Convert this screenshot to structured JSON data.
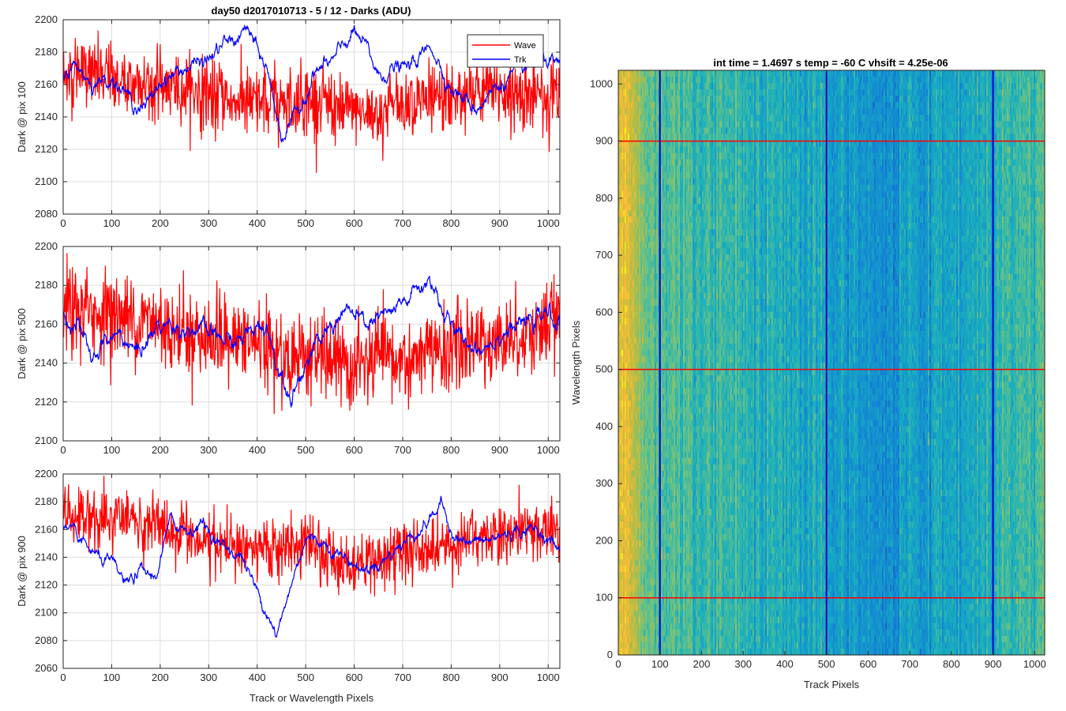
{
  "figure_title": "day50 d2017010713 - 5 / 12 - Darks (ADU)",
  "colors": {
    "wave": "#ff0000",
    "trk": "#0000ff",
    "grid": "#dcdcdc",
    "axis": "#262626"
  },
  "chart_data": [
    {
      "type": "line",
      "title": "day50 d2017010713 - 5 / 12 - Darks (ADU)",
      "ylabel": "Dark @ pix 100",
      "xlabel": "",
      "xlim": [
        0,
        1024
      ],
      "ylim": [
        2080,
        2200
      ],
      "xticks": [
        0,
        100,
        200,
        300,
        400,
        500,
        600,
        700,
        800,
        900,
        1000
      ],
      "yticks": [
        2080,
        2100,
        2120,
        2140,
        2160,
        2180,
        2200
      ],
      "grid": true,
      "legend": {
        "placement": "top-right",
        "entries": [
          "Wave",
          "Trk"
        ]
      },
      "series": [
        {
          "name": "Wave",
          "color": "#ff0000",
          "noise": 11,
          "anchors": [
            [
              0,
              2165
            ],
            [
              50,
              2168
            ],
            [
              100,
              2163
            ],
            [
              200,
              2160
            ],
            [
              300,
              2154
            ],
            [
              350,
              2150
            ],
            [
              400,
              2147
            ],
            [
              500,
              2151
            ],
            [
              550,
              2148
            ],
            [
              600,
              2142
            ],
            [
              650,
              2143
            ],
            [
              700,
              2150
            ],
            [
              800,
              2152
            ],
            [
              900,
              2155
            ],
            [
              1000,
              2153
            ],
            [
              1024,
              2152
            ]
          ]
        },
        {
          "name": "Trk",
          "color": "#0000ff",
          "noise": 4,
          "anchors": [
            [
              0,
              2168
            ],
            [
              30,
              2172
            ],
            [
              60,
              2160
            ],
            [
              100,
              2165
            ],
            [
              140,
              2150
            ],
            [
              170,
              2145
            ],
            [
              200,
              2162
            ],
            [
              250,
              2170
            ],
            [
              300,
              2175
            ],
            [
              330,
              2185
            ],
            [
              360,
              2188
            ],
            [
              380,
              2195
            ],
            [
              400,
              2180
            ],
            [
              420,
              2170
            ],
            [
              450,
              2128
            ],
            [
              480,
              2140
            ],
            [
              520,
              2168
            ],
            [
              560,
              2175
            ],
            [
              580,
              2185
            ],
            [
              600,
              2192
            ],
            [
              630,
              2180
            ],
            [
              650,
              2165
            ],
            [
              680,
              2170
            ],
            [
              710,
              2170
            ],
            [
              740,
              2178
            ],
            [
              760,
              2184
            ],
            [
              780,
              2170
            ],
            [
              800,
              2158
            ],
            [
              830,
              2150
            ],
            [
              850,
              2145
            ],
            [
              880,
              2155
            ],
            [
              920,
              2165
            ],
            [
              960,
              2170
            ],
            [
              1000,
              2175
            ],
            [
              1024,
              2168
            ]
          ]
        }
      ]
    },
    {
      "type": "line",
      "title": "",
      "ylabel": "Dark @ pix 500",
      "xlabel": "",
      "xlim": [
        0,
        1024
      ],
      "ylim": [
        2100,
        2200
      ],
      "xticks": [
        0,
        100,
        200,
        300,
        400,
        500,
        600,
        700,
        800,
        900,
        1000
      ],
      "yticks": [
        2100,
        2120,
        2140,
        2160,
        2180,
        2200
      ],
      "grid": true,
      "series": [
        {
          "name": "Wave",
          "color": "#ff0000",
          "noise": 11,
          "anchors": [
            [
              0,
              2168
            ],
            [
              100,
              2165
            ],
            [
              200,
              2160
            ],
            [
              300,
              2153
            ],
            [
              400,
              2150
            ],
            [
              450,
              2142
            ],
            [
              500,
              2146
            ],
            [
              550,
              2140
            ],
            [
              600,
              2138
            ],
            [
              650,
              2142
            ],
            [
              700,
              2140
            ],
            [
              800,
              2148
            ],
            [
              900,
              2152
            ],
            [
              1000,
              2158
            ],
            [
              1024,
              2160
            ]
          ]
        },
        {
          "name": "Trk",
          "color": "#0000ff",
          "noise": 4,
          "anchors": [
            [
              0,
              2165
            ],
            [
              30,
              2160
            ],
            [
              60,
              2140
            ],
            [
              80,
              2150
            ],
            [
              120,
              2155
            ],
            [
              150,
              2145
            ],
            [
              200,
              2160
            ],
            [
              260,
              2158
            ],
            [
              300,
              2155
            ],
            [
              350,
              2150
            ],
            [
              400,
              2158
            ],
            [
              420,
              2160
            ],
            [
              440,
              2140
            ],
            [
              470,
              2125
            ],
            [
              500,
              2140
            ],
            [
              540,
              2155
            ],
            [
              580,
              2168
            ],
            [
              620,
              2160
            ],
            [
              680,
              2165
            ],
            [
              720,
              2175
            ],
            [
              760,
              2183
            ],
            [
              790,
              2162
            ],
            [
              820,
              2152
            ],
            [
              860,
              2148
            ],
            [
              900,
              2155
            ],
            [
              950,
              2160
            ],
            [
              1000,
              2165
            ],
            [
              1024,
              2160
            ]
          ]
        }
      ]
    },
    {
      "type": "line",
      "title": "",
      "ylabel": "Dark @ pix 900",
      "xlabel": "Track or Wavelength Pixels",
      "xlim": [
        0,
        1024
      ],
      "ylim": [
        2060,
        2200
      ],
      "xticks": [
        0,
        100,
        200,
        300,
        400,
        500,
        600,
        700,
        800,
        900,
        1000
      ],
      "yticks": [
        2060,
        2080,
        2100,
        2120,
        2140,
        2160,
        2180,
        2200
      ],
      "grid": true,
      "series": [
        {
          "name": "Wave",
          "color": "#ff0000",
          "noise": 11,
          "anchors": [
            [
              0,
              2170
            ],
            [
              100,
              2168
            ],
            [
              200,
              2162
            ],
            [
              300,
              2150
            ],
            [
              400,
              2145
            ],
            [
              500,
              2148
            ],
            [
              550,
              2140
            ],
            [
              600,
              2135
            ],
            [
              650,
              2138
            ],
            [
              700,
              2145
            ],
            [
              800,
              2150
            ],
            [
              900,
              2158
            ],
            [
              1000,
              2160
            ],
            [
              1024,
              2162
            ]
          ]
        },
        {
          "name": "Trk",
          "color": "#0000ff",
          "noise": 4,
          "anchors": [
            [
              0,
              2160
            ],
            [
              40,
              2150
            ],
            [
              70,
              2140
            ],
            [
              100,
              2135
            ],
            [
              130,
              2120
            ],
            [
              160,
              2130
            ],
            [
              190,
              2125
            ],
            [
              220,
              2165
            ],
            [
              260,
              2160
            ],
            [
              290,
              2165
            ],
            [
              320,
              2150
            ],
            [
              370,
              2140
            ],
            [
              400,
              2115
            ],
            [
              430,
              2095
            ],
            [
              440,
              2082
            ],
            [
              470,
              2120
            ],
            [
              500,
              2155
            ],
            [
              540,
              2150
            ],
            [
              580,
              2140
            ],
            [
              620,
              2130
            ],
            [
              660,
              2138
            ],
            [
              700,
              2150
            ],
            [
              750,
              2165
            ],
            [
              780,
              2178
            ],
            [
              800,
              2160
            ],
            [
              830,
              2150
            ],
            [
              880,
              2152
            ],
            [
              920,
              2158
            ],
            [
              980,
              2160
            ],
            [
              1024,
              2145
            ]
          ]
        }
      ]
    },
    {
      "type": "heatmap",
      "title": "int time = 1.4697 s    temp = -60 C    vhsift = 4.25e-06",
      "xlabel": "Track Pixels",
      "ylabel": "Wavelength Pixels",
      "xlim": [
        0,
        1024
      ],
      "ylim": [
        0,
        1024
      ],
      "xticks": [
        0,
        100,
        200,
        300,
        400,
        500,
        600,
        700,
        800,
        900,
        1000
      ],
      "yticks": [
        0,
        100,
        200,
        300,
        400,
        500,
        600,
        700,
        800,
        900,
        1000
      ],
      "colormap": "parula",
      "column_profile": [
        [
          0,
          0.8
        ],
        [
          40,
          0.76
        ],
        [
          60,
          0.62
        ],
        [
          100,
          0.56
        ],
        [
          200,
          0.52
        ],
        [
          300,
          0.48
        ],
        [
          400,
          0.46
        ],
        [
          500,
          0.4
        ],
        [
          550,
          0.36
        ],
        [
          600,
          0.34
        ],
        [
          650,
          0.34
        ],
        [
          700,
          0.38
        ],
        [
          750,
          0.36
        ],
        [
          800,
          0.42
        ],
        [
          900,
          0.48
        ],
        [
          1000,
          0.54
        ],
        [
          1024,
          0.6
        ]
      ],
      "red_lines_y": [
        100,
        500,
        900
      ],
      "blue_lines_x": [
        100,
        500,
        900
      ]
    }
  ]
}
